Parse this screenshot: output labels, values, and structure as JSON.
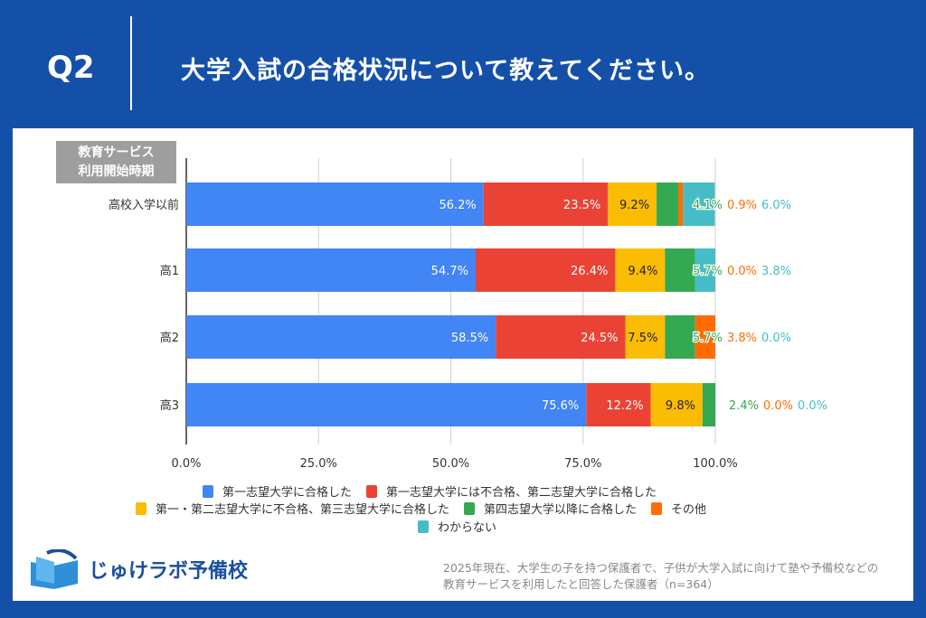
{
  "header": {
    "q": "Q2",
    "title": "大学入試の合格状況について教えてください。"
  },
  "logo": {
    "text": "じゅけラボ予備校"
  },
  "note": {
    "line1": "2025年現在、大学生の子を持つ保護者で、子供が大学入試に向けて塾や予備校などの",
    "line2": "教育サービスを利用したと回答した保護者（n=364）"
  },
  "chart_data": {
    "type": "bar",
    "orientation": "horizontal",
    "stacked": true,
    "ylabel": [
      "教育サービス",
      "利用開始時期"
    ],
    "categories": [
      "高校入学以前",
      "高1",
      "高2",
      "高3"
    ],
    "xlim": [
      0,
      100
    ],
    "xticks": [
      "0.0%",
      "25.0%",
      "50.0%",
      "75.0%",
      "100.0%"
    ],
    "grid": true,
    "legend": "bottom",
    "series": [
      {
        "name": "第一志望大学に合格した",
        "color": "#4285f4",
        "values": [
          56.2,
          54.7,
          58.5,
          75.6
        ]
      },
      {
        "name": "第一志望大学には不合格、第二志望大学に合格した",
        "color": "#ea4335",
        "values": [
          23.5,
          26.4,
          24.5,
          12.2
        ]
      },
      {
        "name": "第一・第二志望大学に不合格、第三志望大学に合格した",
        "color": "#fbbc04",
        "values": [
          9.2,
          9.4,
          7.5,
          9.8
        ]
      },
      {
        "name": "第四志望大学以降に合格した",
        "color": "#34a853",
        "values": [
          4.1,
          5.7,
          5.7,
          2.4
        ]
      },
      {
        "name": "その他",
        "color": "#ff6d01",
        "values": [
          0.9,
          0.0,
          3.8,
          0.0
        ]
      },
      {
        "name": "わからない",
        "color": "#46bdc6",
        "values": [
          6.0,
          3.8,
          0.0,
          0.0
        ]
      }
    ]
  }
}
